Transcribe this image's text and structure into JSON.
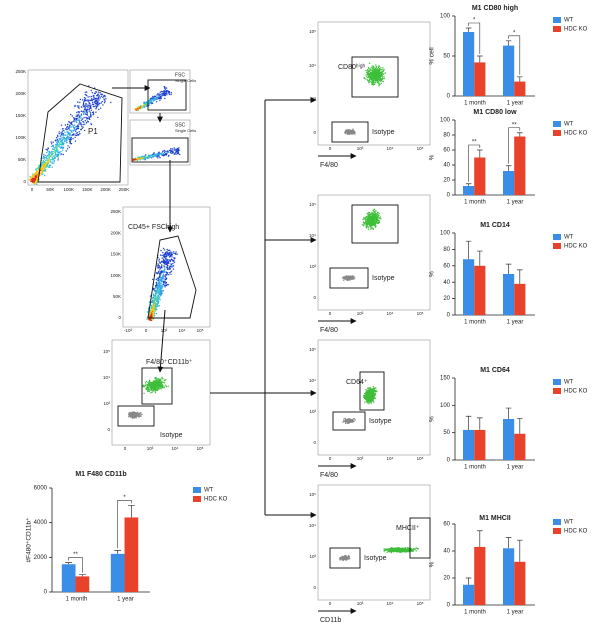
{
  "panels": {
    "p1": {
      "gate": "P1",
      "yticks": [
        "250K",
        "200K",
        "150K",
        "100K",
        "50K",
        "0"
      ],
      "xticks": [
        "0",
        "50K",
        "100K",
        "150K",
        "200K",
        "250K"
      ]
    },
    "fsc": {
      "title": "FSC",
      "subtitle": "Single Cells"
    },
    "ssc": {
      "title": "SSC",
      "subtitle": "Single Cells"
    },
    "cd45": {
      "gate": "CD45+ FSChigh",
      "yticks": [
        "250K",
        "200K",
        "150K",
        "100K",
        "50K",
        "0"
      ],
      "xticks": [
        "-10³",
        "0",
        "10³",
        "10⁴",
        "10⁵"
      ]
    },
    "f480cd11b": {
      "gate": "F4/80⁺CD11b⁺",
      "isotype": "Isotype"
    },
    "cd80": {
      "gate": "CD80ʰⁱᵍʰ",
      "isotype": "Isotype",
      "xlabel": "F4/80"
    },
    "cd14": {
      "isotype": "Isotype",
      "xlabel": "F4/80"
    },
    "cd64": {
      "gate": "CD64⁺",
      "isotype": "Isotype",
      "xlabel": "F4/80"
    },
    "mhcii": {
      "gate": "MHCII⁺",
      "isotype": "Isotype",
      "xlabel": "CD11b"
    },
    "log_yticks": [
      "10⁵",
      "10⁴",
      "10³",
      "0"
    ],
    "log_xticks": [
      "0",
      "10³",
      "10⁴",
      "10⁵"
    ]
  },
  "chart_data": [
    {
      "type": "bar",
      "title": "M1 F480 CD11b",
      "ylabel": "#F480⁺CD11b⁺",
      "categories": [
        "1 month",
        "1 year"
      ],
      "series": [
        {
          "name": "WT",
          "color": "#3b8ee8",
          "values": [
            1600,
            2200
          ],
          "errors": [
            100,
            200
          ]
        },
        {
          "name": "HDC KO",
          "color": "#e8422b",
          "values": [
            900,
            4300
          ],
          "errors": [
            100,
            700
          ]
        }
      ],
      "ylim": [
        0,
        6000
      ],
      "yticks": [
        0,
        2000,
        4000,
        6000
      ],
      "significance": [
        "**",
        "*"
      ]
    },
    {
      "type": "bar",
      "title": "M1 CD80 high",
      "ylabel": "% cell",
      "categories": [
        "1 month",
        "1 year"
      ],
      "series": [
        {
          "name": "WT",
          "color": "#3b8ee8",
          "values": [
            80,
            63
          ],
          "errors": [
            5,
            6
          ]
        },
        {
          "name": "HDC KO",
          "color": "#e8422b",
          "values": [
            42,
            18
          ],
          "errors": [
            8,
            6
          ]
        }
      ],
      "ylim": [
        0,
        100
      ],
      "yticks": [
        0,
        50,
        100
      ],
      "significance": [
        "*",
        "*"
      ]
    },
    {
      "type": "bar",
      "title": "M1 CD80 low",
      "ylabel": "%",
      "categories": [
        "1 month",
        "1 year"
      ],
      "series": [
        {
          "name": "WT",
          "color": "#3b8ee8",
          "values": [
            12,
            32
          ],
          "errors": [
            3,
            7
          ]
        },
        {
          "name": "HDC KO",
          "color": "#e8422b",
          "values": [
            50,
            78
          ],
          "errors": [
            10,
            5
          ]
        }
      ],
      "ylim": [
        0,
        100
      ],
      "yticks": [
        0,
        20,
        40,
        60,
        80,
        100
      ],
      "significance": [
        "**",
        "**"
      ]
    },
    {
      "type": "bar",
      "title": "M1 CD14",
      "ylabel": "%",
      "categories": [
        "1 month",
        "1 year"
      ],
      "series": [
        {
          "name": "WT",
          "color": "#3b8ee8",
          "values": [
            68,
            50
          ],
          "errors": [
            22,
            12
          ]
        },
        {
          "name": "HDC KO",
          "color": "#e8422b",
          "values": [
            60,
            38
          ],
          "errors": [
            18,
            17
          ]
        }
      ],
      "ylim": [
        0,
        100
      ],
      "yticks": [
        0,
        20,
        40,
        60,
        80,
        100
      ]
    },
    {
      "type": "bar",
      "title": "M1 CD64",
      "ylabel": "%",
      "categories": [
        "1 month",
        "1 year"
      ],
      "series": [
        {
          "name": "WT",
          "color": "#3b8ee8",
          "values": [
            55,
            75
          ],
          "errors": [
            25,
            20
          ]
        },
        {
          "name": "HDC KO",
          "color": "#e8422b",
          "values": [
            55,
            48
          ],
          "errors": [
            22,
            28
          ]
        }
      ],
      "ylim": [
        0,
        150
      ],
      "yticks": [
        0,
        50,
        100,
        150
      ]
    },
    {
      "type": "bar",
      "title": "M1 MHCII",
      "ylabel": "%",
      "categories": [
        "1 month",
        "1 year"
      ],
      "series": [
        {
          "name": "WT",
          "color": "#3b8ee8",
          "values": [
            15,
            42
          ],
          "errors": [
            5,
            8
          ]
        },
        {
          "name": "HDC KO",
          "color": "#e8422b",
          "values": [
            43,
            32
          ],
          "errors": [
            12,
            16
          ]
        }
      ],
      "ylim": [
        0,
        60
      ],
      "yticks": [
        0,
        20,
        40,
        60
      ]
    }
  ]
}
